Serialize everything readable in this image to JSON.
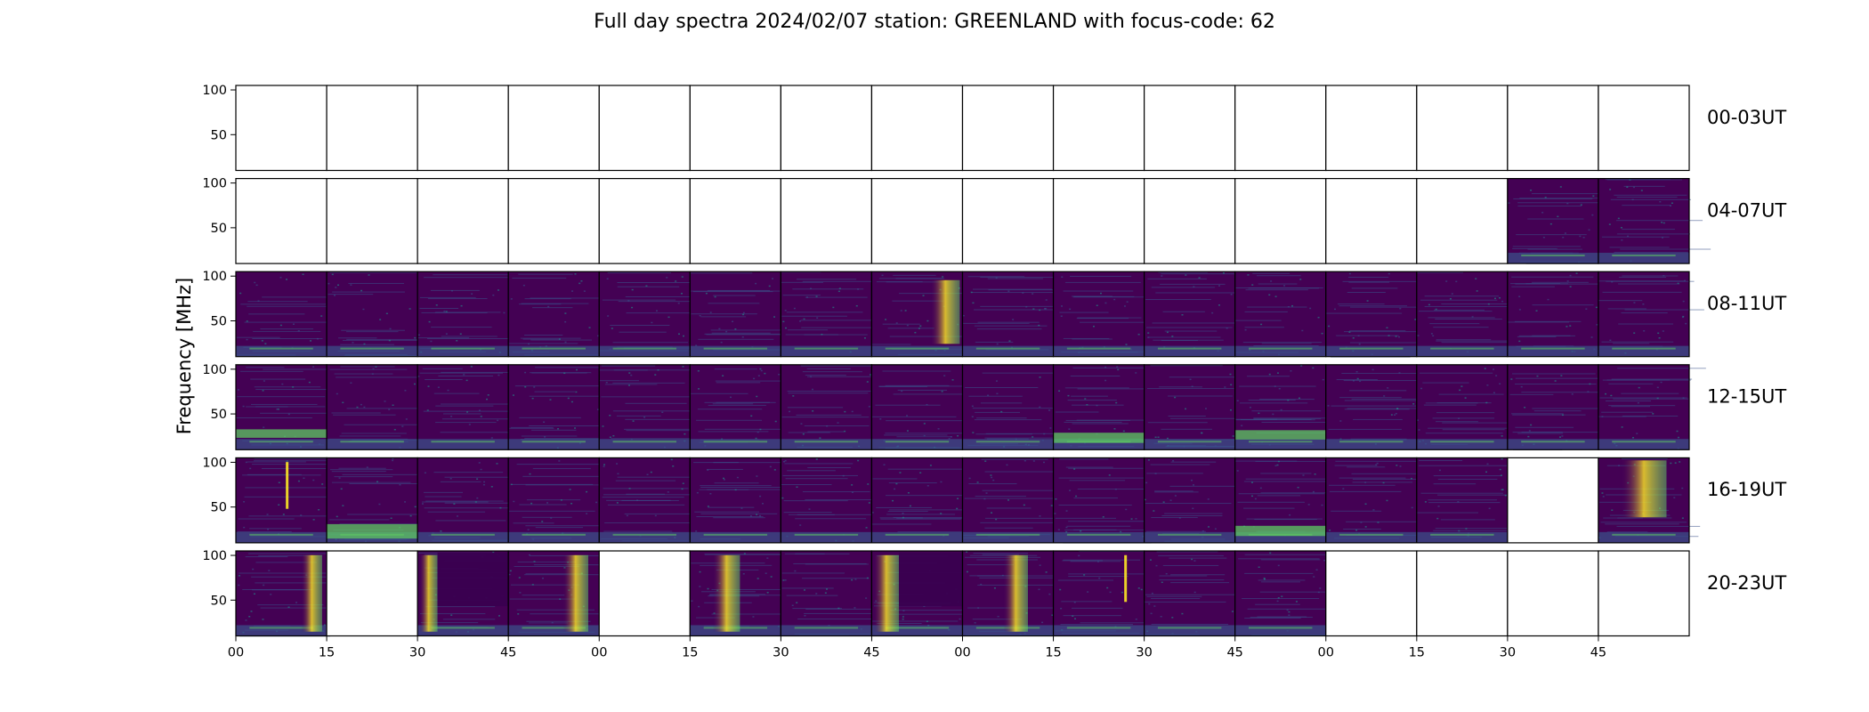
{
  "chart_data": {
    "type": "heatmap",
    "title": "Full day spectra 2024/02/07 station: GREENLAND with focus-code: 62",
    "ylabel": "Frequency [MHz]",
    "yticks": [
      50,
      100
    ],
    "ylim": [
      10,
      105
    ],
    "colormap": "viridis",
    "x_tick_labels": [
      "00",
      "15",
      "30",
      "45",
      "00",
      "15",
      "30",
      "45",
      "00",
      "15",
      "30",
      "45",
      "00",
      "15",
      "30",
      "45"
    ],
    "panels_per_row": 16,
    "rows": [
      {
        "label": "00-03UT",
        "panels": [
          "empty",
          "empty",
          "empty",
          "empty",
          "empty",
          "empty",
          "empty",
          "empty",
          "empty",
          "empty",
          "empty",
          "empty",
          "empty",
          "empty",
          "empty",
          "empty"
        ]
      },
      {
        "label": "04-07UT",
        "panels": [
          "empty",
          "empty",
          "empty",
          "empty",
          "empty",
          "empty",
          "empty",
          "empty",
          "empty",
          "empty",
          "empty",
          "empty",
          "empty",
          "empty",
          "data",
          "data"
        ]
      },
      {
        "label": "08-11UT",
        "panels": [
          "data",
          "data",
          "data",
          "data",
          "data",
          "data",
          "data",
          "data",
          "data",
          "data",
          "data",
          "data",
          "data",
          "data",
          "data",
          "data"
        ]
      },
      {
        "label": "12-15UT",
        "panels": [
          "data",
          "data",
          "data",
          "data",
          "data",
          "data",
          "data",
          "data",
          "data",
          "data",
          "data",
          "data",
          "data",
          "data",
          "data",
          "data"
        ]
      },
      {
        "label": "16-19UT",
        "panels": [
          "data",
          "data",
          "data",
          "data",
          "data",
          "data",
          "data",
          "data",
          "data",
          "data",
          "data",
          "data",
          "data",
          "data",
          "empty",
          "data"
        ]
      },
      {
        "label": "20-23UT",
        "panels": [
          "data",
          "empty",
          "data",
          "data",
          "empty",
          "data",
          "data",
          "data",
          "data",
          "data",
          "data",
          "data",
          "empty",
          "empty",
          "empty",
          "empty"
        ]
      }
    ],
    "colors": {
      "low": "#440154",
      "mid_low": "#3b528b",
      "mid": "#21918c",
      "mid_high": "#5ec962",
      "high": "#fde725",
      "empty": "#ffffff"
    }
  }
}
